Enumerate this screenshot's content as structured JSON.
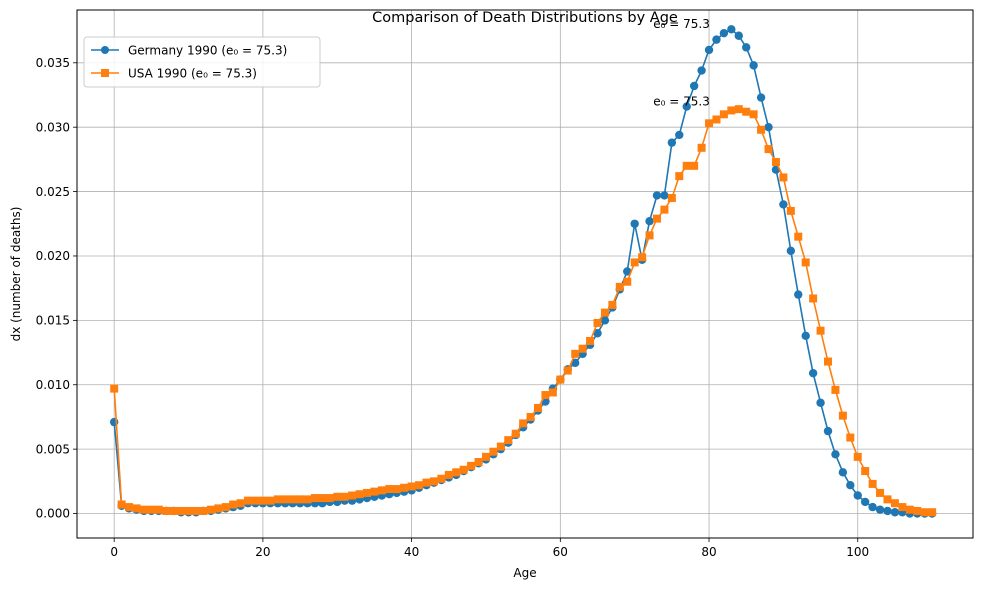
{
  "chart_data": {
    "type": "line",
    "title": "Comparison of Death Distributions by Age",
    "xlabel": "Age",
    "ylabel": "dx (number of deaths)",
    "xlim": [
      -5,
      115.5
    ],
    "ylim": [
      -0.0019,
      0.0391
    ],
    "xticks": [
      0,
      20,
      40,
      60,
      80,
      100
    ],
    "xtick_labels": [
      "0",
      "20",
      "40",
      "60",
      "80",
      "100"
    ],
    "yticks": [
      0,
      0.005,
      0.01,
      0.015,
      0.02,
      0.025,
      0.03,
      0.035
    ],
    "ytick_labels": [
      "0.000",
      "0.005",
      "0.010",
      "0.015",
      "0.020",
      "0.025",
      "0.030",
      "0.035"
    ],
    "grid": true,
    "legend_position": "top-left",
    "x": [
      0,
      1,
      2,
      3,
      4,
      5,
      6,
      7,
      8,
      9,
      10,
      11,
      12,
      13,
      14,
      15,
      16,
      17,
      18,
      19,
      20,
      21,
      22,
      23,
      24,
      25,
      26,
      27,
      28,
      29,
      30,
      31,
      32,
      33,
      34,
      35,
      36,
      37,
      38,
      39,
      40,
      41,
      42,
      43,
      44,
      45,
      46,
      47,
      48,
      49,
      50,
      51,
      52,
      53,
      54,
      55,
      56,
      57,
      58,
      59,
      60,
      61,
      62,
      63,
      64,
      65,
      66,
      67,
      68,
      69,
      70,
      71,
      72,
      73,
      74,
      75,
      76,
      77,
      78,
      79,
      80,
      81,
      82,
      83,
      84,
      85,
      86,
      87,
      88,
      89,
      90,
      91,
      92,
      93,
      94,
      95,
      96,
      97,
      98,
      99,
      100,
      101,
      102,
      103,
      104,
      105,
      106,
      107,
      108,
      109,
      110
    ],
    "series": [
      {
        "name": "Germany 1990 (e₀ = 75.3)",
        "color": "#1f77b4",
        "marker": "circle",
        "values": [
          0.0071,
          0.0006,
          0.0004,
          0.0003,
          0.0002,
          0.0002,
          0.0002,
          0.0002,
          0.0002,
          0.0001,
          0.0001,
          0.0001,
          0.0002,
          0.0002,
          0.0003,
          0.0004,
          0.0005,
          0.0006,
          0.0008,
          0.0008,
          0.0008,
          0.0008,
          0.0008,
          0.0008,
          0.0008,
          0.0008,
          0.0008,
          0.0008,
          0.0008,
          0.0009,
          0.0009,
          0.001,
          0.001,
          0.0011,
          0.0012,
          0.0013,
          0.0014,
          0.0015,
          0.0016,
          0.0017,
          0.0018,
          0.002,
          0.0022,
          0.0024,
          0.0026,
          0.0028,
          0.003,
          0.0033,
          0.0036,
          0.0039,
          0.0042,
          0.0046,
          0.005,
          0.0055,
          0.0061,
          0.0067,
          0.0073,
          0.008,
          0.0087,
          0.0097,
          0.0104,
          0.0112,
          0.0117,
          0.0124,
          0.0131,
          0.014,
          0.015,
          0.016,
          0.0174,
          0.0188,
          0.0225,
          0.0197,
          0.0227,
          0.0247,
          0.0247,
          0.0288,
          0.0294,
          0.0316,
          0.0332,
          0.0344,
          0.036,
          0.0368,
          0.0373,
          0.0376,
          0.0371,
          0.0362,
          0.0348,
          0.0323,
          0.03,
          0.0267,
          0.024,
          0.0204,
          0.017,
          0.0138,
          0.0109,
          0.0086,
          0.0064,
          0.0046,
          0.0032,
          0.0022,
          0.0014,
          0.0009,
          0.0005,
          0.0003,
          0.0002,
          0.0001,
          0.0001,
          0.0,
          0.0,
          0.0,
          0.0
        ]
      },
      {
        "name": "USA 1990 (e₀ = 75.3)",
        "color": "#ff7f0e",
        "marker": "square",
        "values": [
          0.0097,
          0.0007,
          0.0005,
          0.0004,
          0.0003,
          0.0003,
          0.0003,
          0.0002,
          0.0002,
          0.0002,
          0.0002,
          0.0002,
          0.0002,
          0.0003,
          0.0004,
          0.0005,
          0.0007,
          0.0008,
          0.001,
          0.001,
          0.001,
          0.001,
          0.0011,
          0.0011,
          0.0011,
          0.0011,
          0.0011,
          0.0012,
          0.0012,
          0.0012,
          0.0013,
          0.0013,
          0.0014,
          0.0015,
          0.0016,
          0.0017,
          0.0018,
          0.0019,
          0.0019,
          0.002,
          0.0021,
          0.0022,
          0.0024,
          0.0025,
          0.0027,
          0.003,
          0.0032,
          0.0034,
          0.0037,
          0.004,
          0.0044,
          0.0048,
          0.0052,
          0.0057,
          0.0062,
          0.007,
          0.0075,
          0.0082,
          0.0092,
          0.0094,
          0.0104,
          0.0111,
          0.0124,
          0.0128,
          0.0134,
          0.0148,
          0.0156,
          0.0162,
          0.0176,
          0.018,
          0.0195,
          0.0199,
          0.0216,
          0.0229,
          0.0236,
          0.0245,
          0.0262,
          0.027,
          0.027,
          0.0284,
          0.0303,
          0.0306,
          0.031,
          0.0313,
          0.0314,
          0.0312,
          0.031,
          0.0298,
          0.0283,
          0.0273,
          0.0261,
          0.0235,
          0.0215,
          0.0195,
          0.0167,
          0.0142,
          0.0118,
          0.0096,
          0.0076,
          0.0059,
          0.0044,
          0.0033,
          0.0023,
          0.0016,
          0.0011,
          0.0008,
          0.0005,
          0.0003,
          0.0002,
          0.0001,
          0.0001
        ]
      }
    ],
    "annotations": [
      {
        "text": "e₀ = 75.3",
        "x": 72.5,
        "y": 0.0377
      },
      {
        "text": "e₀ = 75.3",
        "x": 72.5,
        "y": 0.0317
      }
    ]
  }
}
